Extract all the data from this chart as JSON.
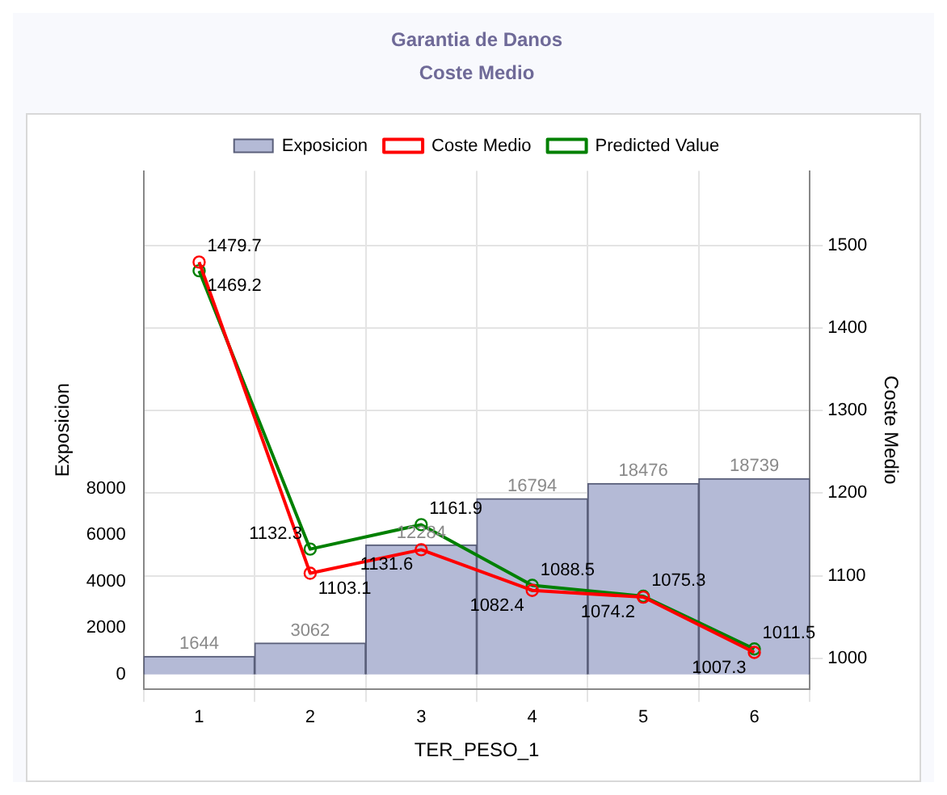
{
  "chart_data": {
    "type": "bar",
    "title": "Garantia de Danos",
    "subtitle": "Coste Medio",
    "xlabel": "TER_PESO_1",
    "ylabel": "Exposicion",
    "y2label": "Coste Medio",
    "categories": [
      "1",
      "2",
      "3",
      "4",
      "5",
      "6"
    ],
    "series": [
      {
        "name": "Exposicion",
        "color": "#b4bad6",
        "values": [
          780,
          1350,
          5580,
          7580,
          8230,
          8440
        ],
        "value_labels": [
          null,
          null,
          null,
          null,
          null,
          null
        ]
      },
      {
        "name": "Coste Medio",
        "type": "line",
        "axis": "y2",
        "color": "#ff0000",
        "values": [
          1479.7,
          1103.1,
          1131.6,
          1082.4,
          1074.2,
          1007.3
        ]
      },
      {
        "name": "Predicted Value",
        "type": "line",
        "axis": "y2",
        "color": "#008000",
        "values": [
          1469.2,
          1132.3,
          1161.9,
          1088.5,
          1075.3,
          1011.5
        ]
      }
    ],
    "ylim": [
      -630,
      21700
    ],
    "yticks": [
      0,
      2000,
      4000,
      6000,
      8000
    ],
    "y2lim": [
      963,
      1590
    ],
    "y2ticks": [
      1000,
      1100,
      1200,
      1300,
      1400,
      1500
    ],
    "annotations": [
      {
        "text": "1644",
        "x": "1",
        "y": 780
      },
      {
        "text": "3062",
        "x": "2",
        "y": 1350
      },
      {
        "text": "12284",
        "x": "3",
        "y": 5580
      },
      {
        "text": "16794",
        "x": "4",
        "y": 7580
      },
      {
        "text": "18476",
        "x": "5",
        "y": 8230
      },
      {
        "text": "18739",
        "x": "6",
        "y": 8440
      }
    ],
    "data_labels": true,
    "grid": true,
    "legend": "top",
    "marker": "circle",
    "line_style": "solid"
  }
}
